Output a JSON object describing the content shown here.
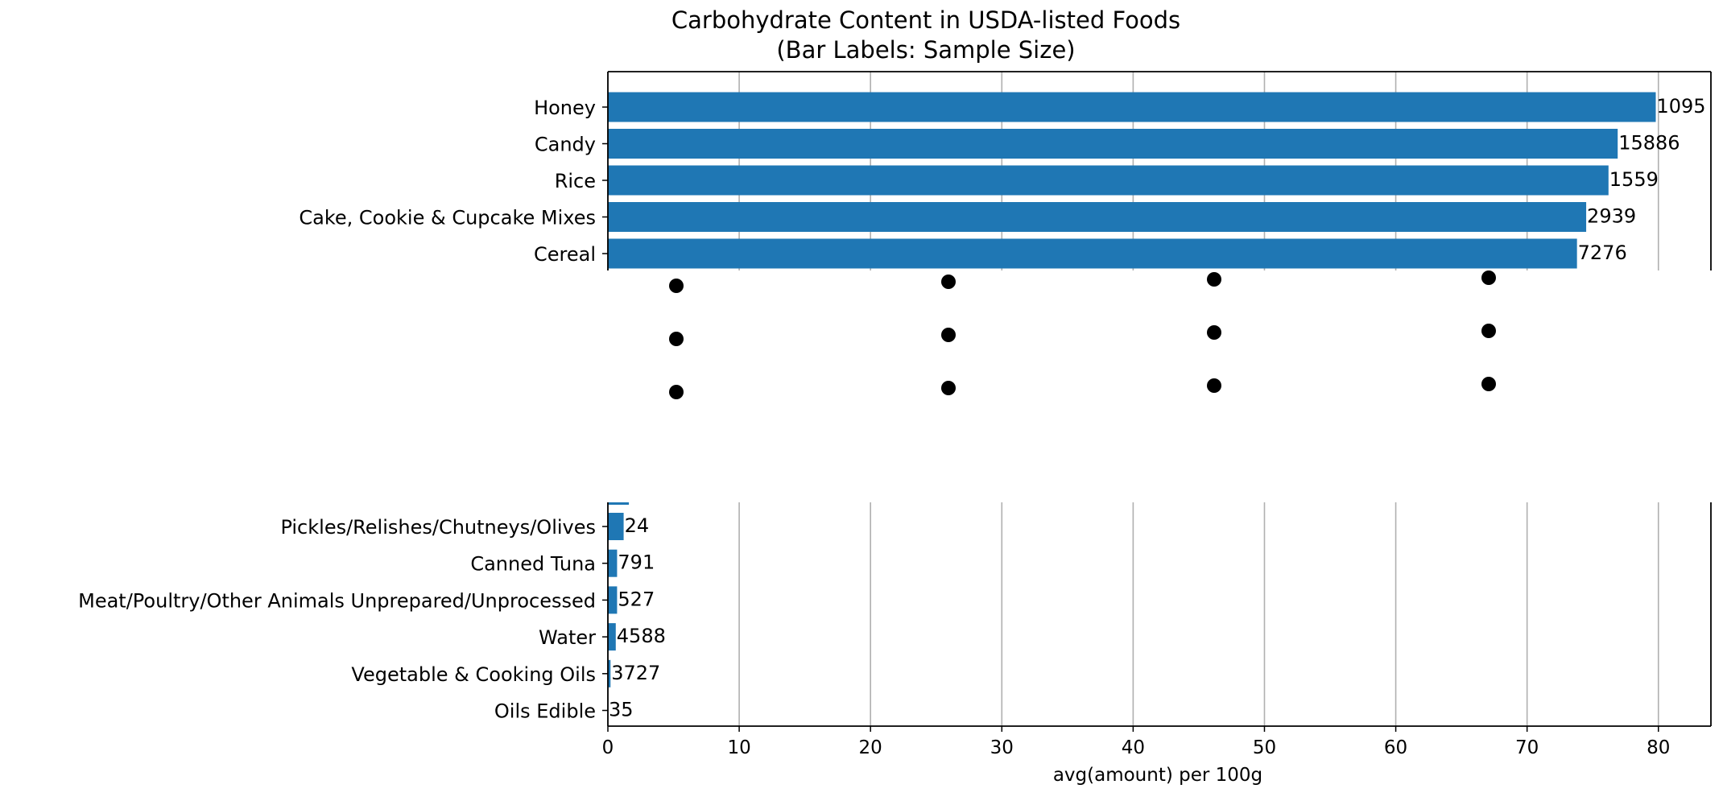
{
  "chart_data": {
    "type": "bar",
    "orientation": "horizontal",
    "broken_axis": true,
    "title_lines": [
      "Carbohydrate Content in USDA-listed Foods",
      "(Bar Labels: Sample Size)"
    ],
    "xlabel": "avg(amount) per 100g",
    "ylabel": "",
    "xlim": [
      0,
      84
    ],
    "xticks": [
      0,
      10,
      20,
      30,
      40,
      50,
      60,
      70,
      80
    ],
    "grid": "vertical",
    "bar_color": "#1f77b4",
    "top_panel": {
      "categories": [
        "Honey",
        "Candy",
        "Rice",
        "Cake, Cookie & Cupcake Mixes",
        "Cereal"
      ],
      "values": [
        79.8,
        76.9,
        76.2,
        74.5,
        73.8
      ],
      "sample_sizes": [
        "1095",
        "15886",
        "1559",
        "2939",
        "7276"
      ]
    },
    "bottom_panel": {
      "categories": [
        "Pickles/Relishes/Chutneys/Olives",
        "Canned Tuna",
        "Meat/Poultry/Other Animals  Unprepared/Unprocessed",
        "Water",
        "Vegetable & Cooking Oils",
        "Oils Edible"
      ],
      "values": [
        1.2,
        0.7,
        0.7,
        0.6,
        0.2,
        0.0
      ],
      "sample_sizes": [
        "24",
        "791",
        "527",
        "4588",
        "3727",
        "35"
      ]
    }
  }
}
